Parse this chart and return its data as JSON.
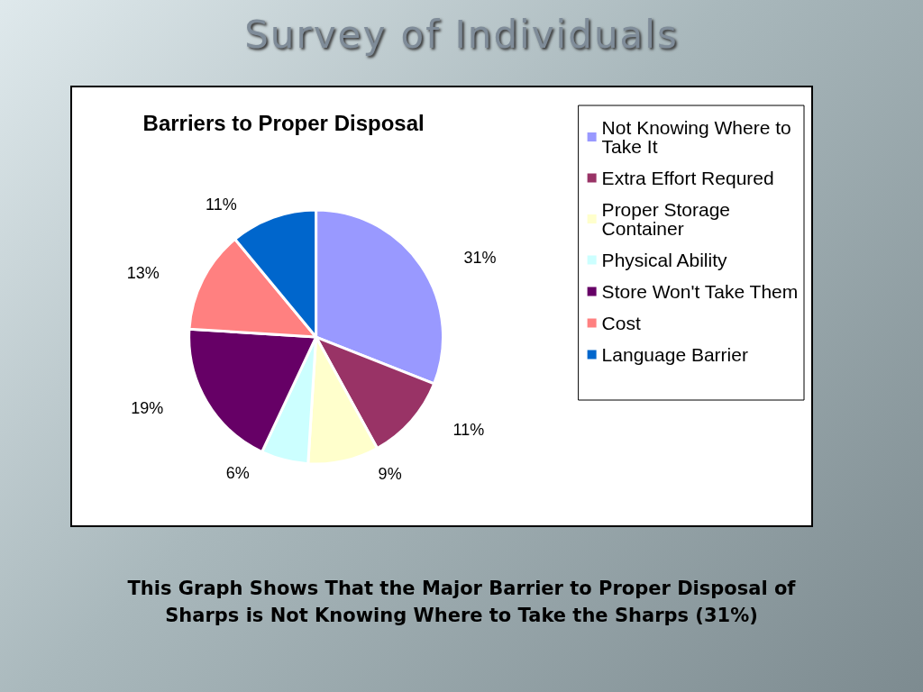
{
  "chart_data": {
    "type": "pie",
    "title": "Survey of Individuals",
    "subtitle": "Barriers to Proper Disposal",
    "categories": [
      "Not Knowing Where to Take It",
      "Extra Effort Requred",
      "Proper Storage Container",
      "Physical Ability",
      "Store Won't Take Them",
      "Cost",
      "Language Barrier"
    ],
    "values": [
      31,
      11,
      9,
      6,
      19,
      13,
      11
    ],
    "colors": [
      "#9999ff",
      "#993366",
      "#ffffcc",
      "#ccffff",
      "#660066",
      "#ff8080",
      "#0066cc"
    ],
    "value_labels": [
      "31%",
      "11%",
      "9%",
      "6%",
      "19%",
      "13%",
      "11%"
    ],
    "legend": "right",
    "annotations": [
      "This Graph Shows That the Major Barrier to Proper Disposal of Sharps is Not Knowing Where to Take the Sharps (31%)"
    ]
  }
}
